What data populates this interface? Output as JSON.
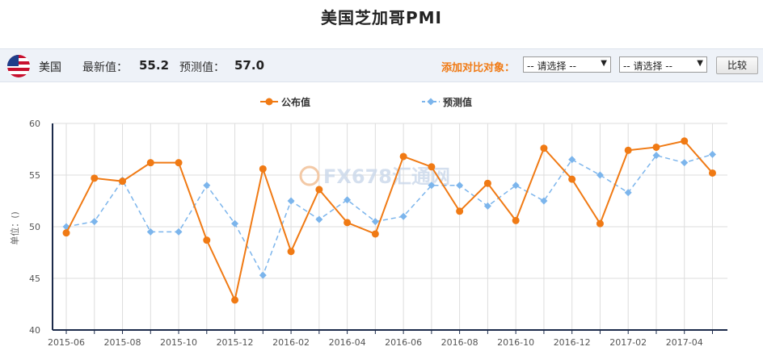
{
  "page": {
    "title": "美国芝加哥PMI"
  },
  "info_bar": {
    "country": "美国",
    "latest_label": "最新值：",
    "latest_value": "55.2",
    "forecast_label": "预测值：",
    "forecast_value": "57.0",
    "compare_label": "添加对比对象：",
    "select1": "-- 请选择 --",
    "select2": "-- 请选择 --",
    "compare_button": "比较"
  },
  "watermark": {
    "text": "FX678汇通网"
  },
  "colors": {
    "published": "#f07a14",
    "forecast": "#7cb5ec",
    "axis": "#1b2a4a",
    "grid": "#dddddd"
  },
  "chart_data": {
    "type": "line",
    "title": "",
    "ylabel": "单位：()",
    "ylim": [
      40,
      60
    ],
    "yticks": [
      "40",
      "45",
      "50",
      "55",
      "60"
    ],
    "grid": true,
    "legend_position": "top-center",
    "x": [
      "2015-06",
      "2015-07",
      "2015-08",
      "2015-09",
      "2015-10",
      "2015-11",
      "2015-12",
      "2016-01",
      "2016-02",
      "2016-03",
      "2016-04",
      "2016-05",
      "2016-06",
      "2016-07",
      "2016-08",
      "2016-09",
      "2016-10",
      "2016-11",
      "2016-12",
      "2017-01",
      "2017-02",
      "2017-03",
      "2017-04",
      "2017-05"
    ],
    "xticks": [
      "2015-06",
      "2015-08",
      "2015-10",
      "2015-12",
      "2016-02",
      "2016-04",
      "2016-06",
      "2016-08",
      "2016-10",
      "2016-12",
      "2017-02",
      "2017-04"
    ],
    "series": [
      {
        "name": "公布值",
        "style": "solid",
        "marker": "circle",
        "values": [
          49.4,
          54.7,
          54.4,
          56.2,
          56.2,
          48.7,
          42.9,
          55.6,
          47.6,
          53.6,
          50.4,
          49.3,
          56.8,
          55.8,
          51.5,
          54.2,
          50.6,
          57.6,
          54.6,
          50.3,
          57.4,
          57.7,
          58.3,
          55.2
        ]
      },
      {
        "name": "预测值",
        "style": "dashed",
        "marker": "diamond",
        "values": [
          50.0,
          50.5,
          54.5,
          49.5,
          49.5,
          54.0,
          50.3,
          45.3,
          52.5,
          50.7,
          52.6,
          50.5,
          51.0,
          54.0,
          54.0,
          52.0,
          54.0,
          52.5,
          56.5,
          55.0,
          53.3,
          56.9,
          56.2,
          57.0
        ]
      }
    ]
  }
}
